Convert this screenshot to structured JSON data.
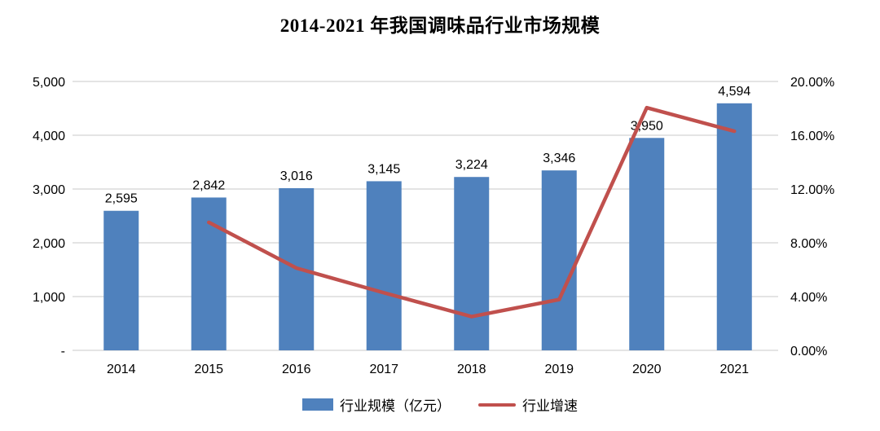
{
  "chart_data": {
    "type": "combo",
    "title": "2014-2021 年我国调味品行业市场规模",
    "categories": [
      "2014",
      "2015",
      "2016",
      "2017",
      "2018",
      "2019",
      "2020",
      "2021"
    ],
    "series": [
      {
        "name": "行业规模（亿元）",
        "type": "bar",
        "axis": "left",
        "color": "#4F81BD",
        "values": [
          2595,
          2842,
          3016,
          3145,
          3224,
          3346,
          3950,
          4594
        ],
        "labels": [
          "2,595",
          "2,842",
          "3,016",
          "3,145",
          "3,224",
          "3,346",
          "3,950",
          "4,594"
        ]
      },
      {
        "name": "行业增速",
        "type": "line",
        "axis": "right",
        "color": "#C0504D",
        "values": [
          null,
          9.52,
          6.12,
          4.28,
          2.51,
          3.78,
          18.05,
          16.3
        ]
      }
    ],
    "left_axis": {
      "min": 0,
      "max": 5000,
      "tick_labels": [
        "-",
        "1,000",
        "2,000",
        "3,000",
        "4,000",
        "5,000"
      ]
    },
    "right_axis": {
      "min": 0,
      "max": 20,
      "tick_labels": [
        "0.00%",
        "4.00%",
        "8.00%",
        "12.00%",
        "16.00%",
        "20.00%"
      ]
    },
    "grid": true,
    "legend_position": "bottom",
    "colors": {
      "grid": "#c9c9c9",
      "text": "#000000"
    }
  }
}
